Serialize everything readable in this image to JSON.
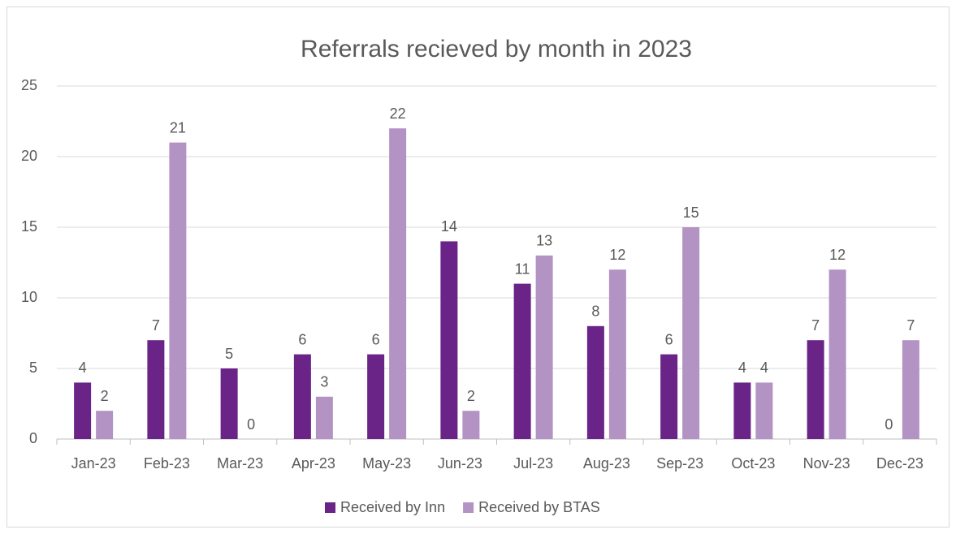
{
  "chart_data": {
    "type": "bar",
    "title": "Referrals recieved by month in 2023",
    "categories": [
      "Jan-23",
      "Feb-23",
      "Mar-23",
      "Apr-23",
      "May-23",
      "Jun-23",
      "Jul-23",
      "Aug-23",
      "Sep-23",
      "Oct-23",
      "Nov-23",
      "Dec-23"
    ],
    "series": [
      {
        "name": "Received by Inn",
        "color": "#6a2487",
        "values": [
          4,
          7,
          5,
          6,
          6,
          14,
          11,
          8,
          6,
          4,
          7,
          0
        ]
      },
      {
        "name": "Received by BTAS",
        "color": "#b393c4",
        "values": [
          2,
          21,
          0,
          3,
          22,
          2,
          13,
          12,
          15,
          4,
          12,
          7
        ]
      }
    ],
    "ylim": [
      0,
      25
    ],
    "yticks": [
      0,
      5,
      10,
      15,
      20,
      25
    ],
    "grid": true,
    "legend": "bottom"
  }
}
